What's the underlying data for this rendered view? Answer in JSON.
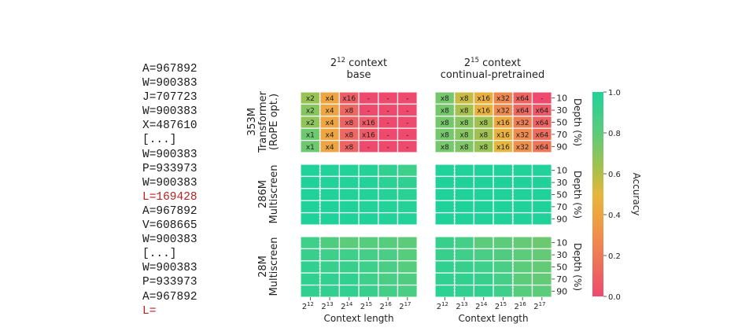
{
  "prompt": {
    "lines": [
      {
        "text": "A=967892",
        "highlight": false
      },
      {
        "text": "W=900383",
        "highlight": false
      },
      {
        "text": "J=707723",
        "highlight": false
      },
      {
        "text": "W=900383",
        "highlight": false
      },
      {
        "text": "X=487610",
        "highlight": false
      },
      {
        "text": "[...]",
        "highlight": false
      },
      {
        "text": "W=900383",
        "highlight": false
      },
      {
        "text": "P=933973",
        "highlight": false
      },
      {
        "text": "W=900383",
        "highlight": false
      },
      {
        "text": "L=169428",
        "highlight": true
      },
      {
        "text": "A=967892",
        "highlight": false
      },
      {
        "text": "V=608665",
        "highlight": false
      },
      {
        "text": "W=900383",
        "highlight": false
      },
      {
        "text": "[...]",
        "highlight": false
      },
      {
        "text": "W=900383",
        "highlight": false
      },
      {
        "text": "P=933973",
        "highlight": false
      },
      {
        "text": "A=967892",
        "highlight": false
      },
      {
        "text": "L=",
        "highlight": true
      }
    ],
    "highlight_color": "#b22222"
  },
  "chart_data": {
    "type": "heatmap",
    "columns": [
      {
        "exp": "15",
        "title_line1": " context",
        "title_line2": "continual-pretrained"
      }
    ],
    "column_titles": [
      {
        "base": "2",
        "exp": "12",
        "line1": " context",
        "line2": "base"
      },
      {
        "base": "2",
        "exp": "15",
        "line1": " context",
        "line2": "continual-pretrained"
      }
    ],
    "row_titles": [
      {
        "line1": "353M",
        "line2": "Transformer",
        "line3": "(RoPE opt.)"
      },
      {
        "line1": "286M",
        "line2": "Multiscreen",
        "line3": ""
      },
      {
        "line1": "28M",
        "line2": "Multiscreen",
        "line3": ""
      }
    ],
    "x_tick_labels": [
      {
        "base": "2",
        "exp": "12"
      },
      {
        "base": "2",
        "exp": "13"
      },
      {
        "base": "2",
        "exp": "14"
      },
      {
        "base": "2",
        "exp": "15"
      },
      {
        "base": "2",
        "exp": "16"
      },
      {
        "base": "2",
        "exp": "17"
      }
    ],
    "xlabel": "Context length",
    "y_tick_labels": [
      "10",
      "30",
      "50",
      "70",
      "90"
    ],
    "ylabel": "Depth (%)",
    "colorbar": {
      "label": "Accuracy",
      "ticks": [
        "0.0",
        "0.2",
        "0.4",
        "0.6",
        "0.8",
        "1.0"
      ],
      "range": [
        0.0,
        1.0
      ],
      "colors": [
        "#ee4a6e",
        "#ee7a56",
        "#eeae3e",
        "#a8c04c",
        "#5ccb7a",
        "#20d29a"
      ]
    },
    "training_context_marker_column_index": [
      0,
      3
    ],
    "panels": [
      {
        "row": 0,
        "col": 0,
        "values": [
          [
            0.66,
            0.4,
            0.08,
            0.0,
            0.0,
            0.0
          ],
          [
            0.7,
            0.4,
            0.12,
            0.0,
            0.0,
            0.0
          ],
          [
            0.68,
            0.4,
            0.1,
            0.06,
            0.0,
            0.0
          ],
          [
            0.76,
            0.4,
            0.12,
            0.06,
            0.0,
            0.0
          ],
          [
            0.76,
            0.4,
            0.1,
            0.0,
            0.0,
            0.0
          ]
        ],
        "labels": [
          [
            "x2",
            "x4",
            "x16",
            "-",
            "-",
            "-"
          ],
          [
            "x2",
            "x4",
            "x8",
            "-",
            "-",
            "-"
          ],
          [
            "x2",
            "x4",
            "x8",
            "x16",
            "-",
            "-"
          ],
          [
            "x1",
            "x4",
            "x8",
            "x16",
            "-",
            "-"
          ],
          [
            "x1",
            "x4",
            "x8",
            "-",
            "-",
            "-"
          ]
        ]
      },
      {
        "row": 0,
        "col": 1,
        "values": [
          [
            0.74,
            0.56,
            0.46,
            0.26,
            0.1,
            0.0
          ],
          [
            0.74,
            0.62,
            0.48,
            0.28,
            0.12,
            0.06
          ],
          [
            0.74,
            0.7,
            0.64,
            0.42,
            0.22,
            0.1
          ],
          [
            0.74,
            0.7,
            0.64,
            0.48,
            0.28,
            0.14
          ],
          [
            0.74,
            0.72,
            0.66,
            0.5,
            0.3,
            0.18
          ]
        ],
        "labels": [
          [
            "x8",
            "x8",
            "x16",
            "x32",
            "x64",
            "-"
          ],
          [
            "x8",
            "x8",
            "x16",
            "x32",
            "x64",
            "x64"
          ],
          [
            "x8",
            "x8",
            "x8",
            "x16",
            "x32",
            "x64"
          ],
          [
            "x8",
            "x8",
            "x8",
            "x16",
            "x32",
            "x64"
          ],
          [
            "x8",
            "x8",
            "x8",
            "x16",
            "x32",
            "x64"
          ]
        ]
      },
      {
        "row": 1,
        "col": 0,
        "values": [
          [
            1.0,
            0.99,
            0.99,
            0.98,
            0.94,
            0.9
          ],
          [
            1.0,
            0.99,
            0.99,
            0.99,
            0.96,
            0.95
          ],
          [
            1.0,
            1.0,
            0.99,
            0.99,
            0.98,
            0.97
          ],
          [
            1.0,
            1.0,
            1.0,
            0.99,
            0.99,
            0.98
          ],
          [
            1.0,
            1.0,
            1.0,
            1.0,
            0.99,
            0.99
          ]
        ],
        "labels": null
      },
      {
        "row": 1,
        "col": 1,
        "values": [
          [
            1.0,
            1.0,
            1.0,
            1.0,
            0.99,
            0.99
          ],
          [
            1.0,
            1.0,
            1.0,
            1.0,
            1.0,
            1.0
          ],
          [
            1.0,
            1.0,
            1.0,
            1.0,
            1.0,
            1.0
          ],
          [
            1.0,
            1.0,
            1.0,
            1.0,
            1.0,
            1.0
          ],
          [
            1.0,
            1.0,
            1.0,
            1.0,
            1.0,
            1.0
          ]
        ],
        "labels": null
      },
      {
        "row": 2,
        "col": 0,
        "values": [
          [
            0.9,
            0.84,
            0.8,
            0.82,
            0.82,
            0.8
          ],
          [
            0.92,
            0.9,
            0.9,
            0.88,
            0.86,
            0.82
          ],
          [
            0.94,
            0.92,
            0.92,
            0.9,
            0.86,
            0.82
          ],
          [
            0.94,
            0.94,
            0.94,
            0.9,
            0.86,
            0.84
          ],
          [
            0.94,
            0.94,
            0.94,
            0.92,
            0.88,
            0.86
          ]
        ],
        "labels": null
      },
      {
        "row": 2,
        "col": 1,
        "values": [
          [
            0.92,
            0.88,
            0.8,
            0.8,
            0.78,
            0.76
          ],
          [
            0.92,
            0.9,
            0.86,
            0.84,
            0.8,
            0.78
          ],
          [
            0.94,
            0.92,
            0.9,
            0.86,
            0.8,
            0.78
          ],
          [
            0.94,
            0.94,
            0.92,
            0.88,
            0.8,
            0.78
          ],
          [
            0.96,
            0.94,
            0.94,
            0.9,
            0.82,
            0.8
          ]
        ],
        "labels": null
      }
    ]
  }
}
